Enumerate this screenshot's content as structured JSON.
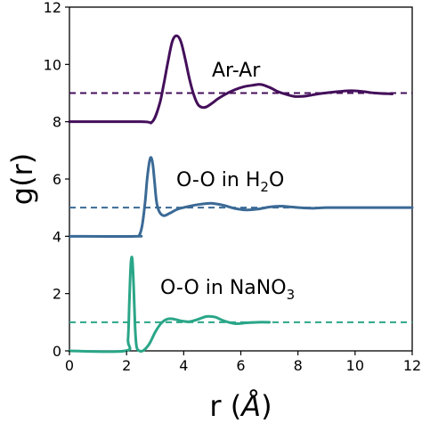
{
  "chart_data": {
    "type": "line",
    "xlabel_main": "r (",
    "xlabel_unit": "Å",
    "xlabel_close": ")",
    "ylabel": "g(r)",
    "xlim": [
      0,
      12
    ],
    "ylim": [
      0,
      12
    ],
    "xticks": [
      0,
      2,
      4,
      6,
      8,
      10,
      12
    ],
    "yticks": [
      0,
      2,
      4,
      6,
      8,
      10,
      12
    ],
    "series": [
      {
        "key": "ar-ar",
        "label_main": "Ar-Ar",
        "label_sub": "",
        "label_tail": "",
        "color": "#440f5a",
        "reference_line": 9,
        "x": [
          0,
          2.5,
          2.9,
          3.15,
          3.3,
          3.45,
          3.6,
          3.75,
          3.9,
          4.05,
          4.2,
          4.35,
          4.5,
          4.65,
          4.8,
          5.0,
          5.2,
          5.5,
          5.8,
          6.1,
          6.4,
          6.7,
          7.0,
          7.3,
          7.6,
          7.9,
          8.3,
          8.7,
          9.1,
          9.5,
          9.9,
          10.3,
          10.7,
          11.3
        ],
        "y": [
          8.0,
          8.0,
          8.0,
          8.6,
          9.3,
          10.1,
          10.8,
          11.0,
          10.8,
          10.2,
          9.5,
          8.95,
          8.6,
          8.5,
          8.52,
          8.65,
          8.8,
          8.98,
          9.12,
          9.22,
          9.27,
          9.3,
          9.2,
          9.05,
          8.95,
          8.88,
          8.9,
          8.97,
          9.02,
          9.06,
          9.08,
          9.05,
          9.0,
          8.97
        ]
      },
      {
        "key": "o-o-h2o",
        "label_main": "O-O in H",
        "label_sub": "2",
        "label_tail": "O",
        "color": "#3b6a96",
        "reference_line": 5,
        "x": [
          0,
          2.3,
          2.45,
          2.55,
          2.65,
          2.72,
          2.8,
          2.86,
          2.92,
          2.98,
          3.05,
          3.15,
          3.3,
          3.5,
          3.8,
          4.2,
          4.6,
          5.0,
          5.4,
          5.8,
          6.2,
          6.6,
          7.0,
          7.4,
          7.8,
          8.2,
          8.6,
          9.0,
          10.0,
          12.0
        ],
        "y": [
          4.0,
          4.0,
          4.05,
          4.4,
          5.2,
          6.0,
          6.6,
          6.75,
          6.5,
          5.9,
          5.2,
          4.85,
          4.72,
          4.8,
          4.95,
          5.05,
          5.12,
          5.15,
          5.08,
          4.97,
          4.92,
          4.95,
          5.02,
          5.05,
          5.02,
          4.99,
          4.98,
          5.0,
          5.0,
          5.0
        ]
      },
      {
        "key": "o-o-nano3",
        "label_main": "O-O in NaNO",
        "label_sub": "3",
        "label_tail": "",
        "color": "#2aa688",
        "reference_line": 1,
        "x": [
          0,
          1.95,
          2.05,
          2.1,
          2.15,
          2.2,
          2.25,
          2.3,
          2.35,
          2.45,
          2.6,
          2.8,
          3.0,
          3.2,
          3.4,
          3.6,
          3.9,
          4.2,
          4.5,
          4.8,
          5.1,
          5.4,
          5.8,
          6.2,
          6.6,
          7.0
        ],
        "y": [
          0.0,
          0.0,
          0.4,
          1.8,
          3.05,
          3.2,
          2.2,
          0.8,
          0.15,
          0.0,
          0.02,
          0.25,
          0.65,
          0.95,
          1.1,
          1.12,
          1.05,
          1.02,
          1.1,
          1.2,
          1.18,
          1.05,
          0.95,
          0.98,
          1.0,
          1.0
        ]
      }
    ]
  }
}
